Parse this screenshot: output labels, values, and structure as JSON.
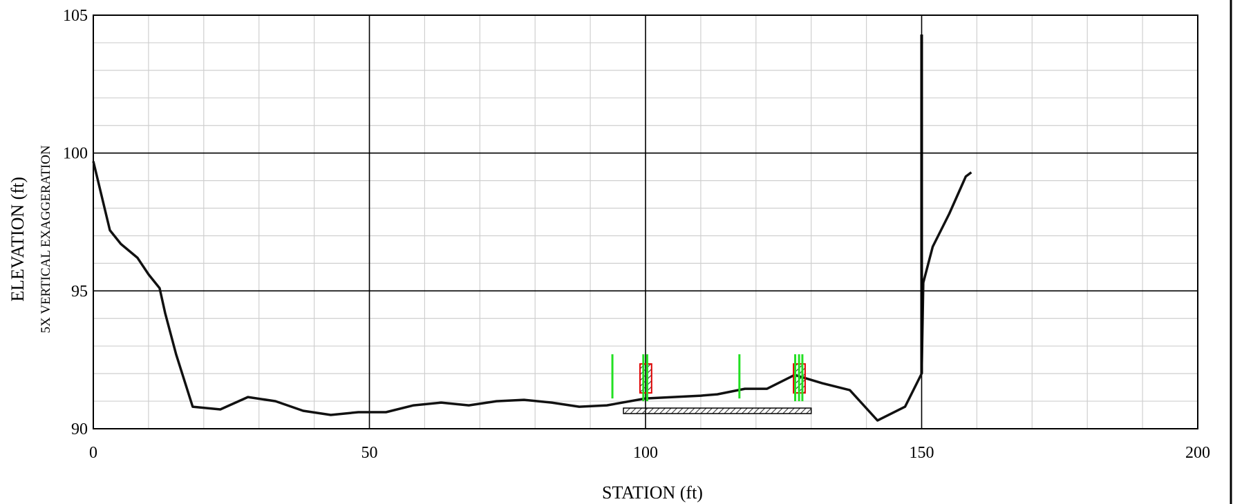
{
  "chart_data": {
    "type": "line",
    "xlabel": "STATION (ft)",
    "ylabel": "ELEVATION (ft)",
    "ylabel_sub": "5X VERTICAL EXAGGERATION",
    "xlim": [
      0,
      200
    ],
    "ylim": [
      90,
      105
    ],
    "x_ticks": [
      0,
      50,
      100,
      150,
      200
    ],
    "y_ticks": [
      90,
      95,
      100,
      105
    ],
    "x_tick_labels": [
      "0",
      "50",
      "100",
      "150",
      "200"
    ],
    "y_tick_labels": [
      "90",
      "95",
      "100",
      "105"
    ],
    "x_minor_step": 10,
    "y_minor_step": 1,
    "grid": true,
    "ground_profile": {
      "x": [
        0,
        3,
        5,
        8,
        10,
        11,
        12,
        13,
        15,
        18,
        23,
        28,
        33,
        38,
        43,
        48,
        53,
        58,
        63,
        68,
        73,
        78,
        83,
        88,
        93,
        100,
        105,
        110,
        113,
        118,
        122,
        127,
        132,
        137,
        142,
        147,
        150,
        150.3,
        152,
        155,
        158,
        159
      ],
      "y": [
        99.7,
        97.2,
        96.7,
        96.2,
        95.6,
        95.35,
        95.1,
        94.2,
        92.7,
        90.8,
        90.7,
        91.15,
        91.0,
        90.65,
        90.5,
        90.6,
        90.6,
        90.85,
        90.95,
        90.85,
        91.0,
        91.05,
        90.95,
        90.8,
        90.85,
        91.1,
        91.15,
        91.2,
        91.25,
        91.45,
        91.45,
        91.95,
        91.65,
        91.4,
        90.3,
        90.8,
        92.0,
        95.3,
        96.6,
        97.8,
        99.15,
        99.3
      ]
    },
    "vertical_line": {
      "x": 150,
      "y_from": 92.0,
      "y_to": 104.3
    },
    "green_markers": [
      {
        "x": 94,
        "y_from": 91.1,
        "y_to": 92.7
      },
      {
        "x": 99.6,
        "y_from": 91.0,
        "y_to": 92.7
      },
      {
        "x": 100.3,
        "y_from": 91.0,
        "y_to": 92.7
      },
      {
        "x": 117,
        "y_from": 91.1,
        "y_to": 92.7
      },
      {
        "x": 127.1,
        "y_from": 91.0,
        "y_to": 92.7
      },
      {
        "x": 127.8,
        "y_from": 91.0,
        "y_to": 92.7
      },
      {
        "x": 128.4,
        "y_from": 91.0,
        "y_to": 92.7
      }
    ],
    "red_hatched_boxes": [
      {
        "x_from": 99.0,
        "x_to": 101.1,
        "y_from": 91.3,
        "y_to": 92.35
      },
      {
        "x_from": 126.8,
        "x_to": 128.9,
        "y_from": 91.3,
        "y_to": 92.35
      }
    ],
    "hatched_bar": {
      "x_from": 96,
      "x_to": 130,
      "y_from": 90.55,
      "y_to": 90.75
    }
  }
}
